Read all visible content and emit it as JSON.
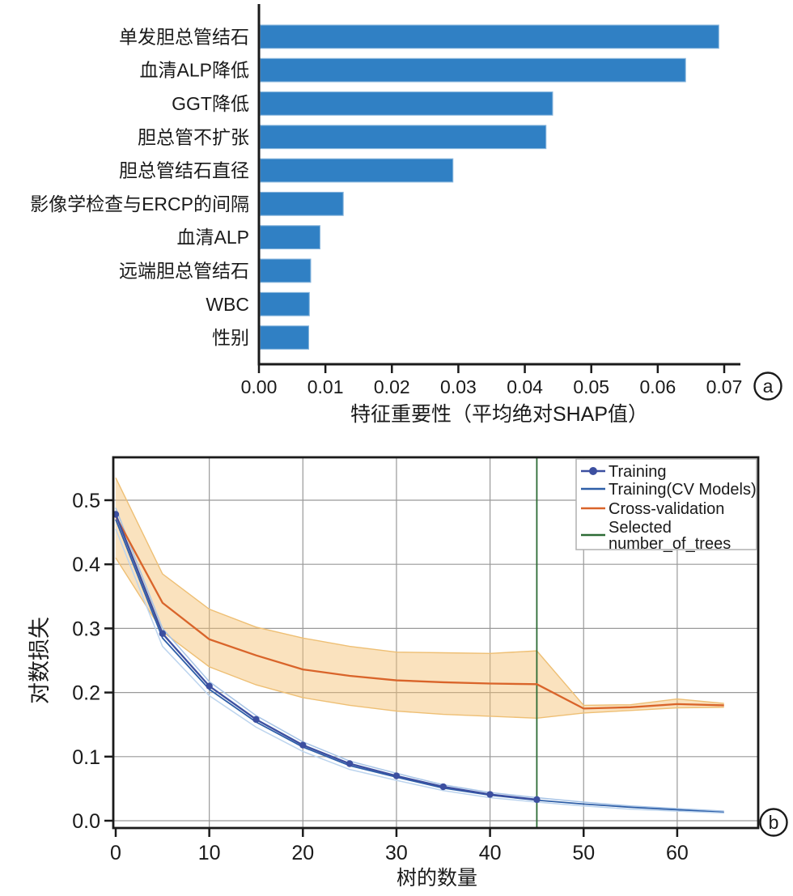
{
  "background": "#ffffff",
  "text_color": "#1a1a1a",
  "panel_labels": [
    "a",
    "b"
  ],
  "chart_data": [
    {
      "type": "bar",
      "orientation": "horizontal",
      "title": "",
      "xlabel": "特征重要性（平均绝对SHAP值）",
      "categories": [
        "单发胆总管结石",
        "血清ALP降低",
        "GGT降低",
        "胆总管不扩张",
        "胆总管结石直径",
        "影像学检查与ERCP的间隔",
        "血清ALP",
        "远端胆总管结石",
        "WBC",
        "性别"
      ],
      "values": [
        0.069,
        0.064,
        0.044,
        0.043,
        0.029,
        0.0125,
        0.009,
        0.0076,
        0.0074,
        0.0073
      ],
      "xtick_labels": [
        "0.00",
        "0.01",
        "0.02",
        "0.03",
        "0.04",
        "0.05",
        "0.06",
        "0.07"
      ],
      "xlim": [
        0,
        0.0725
      ],
      "grid": false,
      "bar_color": "#3080c4",
      "bar_edge_color": "#85b4dc",
      "panel_label": "a"
    },
    {
      "type": "line",
      "title": "",
      "xlabel": "树的数量",
      "ylabel": "对数损失",
      "x": [
        0,
        5,
        10,
        15,
        20,
        25,
        30,
        35,
        40,
        45,
        50,
        55,
        60,
        65
      ],
      "xticks": [
        0,
        10,
        20,
        30,
        40,
        50,
        60
      ],
      "ytick_labels": [
        "0.0",
        "0.1",
        "0.2",
        "0.3",
        "0.4",
        "0.5"
      ],
      "xlim": [
        0,
        68.7
      ],
      "ylim": [
        -0.011,
        0.567
      ],
      "grid": true,
      "grid_color": "#999999",
      "legend_position": "upper right",
      "series": [
        {
          "name": "Training",
          "color": "#3c4fa0",
          "marker": "circle",
          "x": [
            0,
            5,
            10,
            15,
            20,
            25,
            30,
            35,
            40,
            45
          ],
          "values": [
            0.478,
            0.292,
            0.21,
            0.158,
            0.118,
            0.089,
            0.07,
            0.053,
            0.041,
            0.033
          ]
        },
        {
          "name": "Training(CV Models)",
          "color": "#2e5fa8",
          "strands": [
            {
              "color": "#a6c3e6",
              "values": [
                0.488,
                0.3,
                0.217,
                0.164,
                0.123,
                0.093,
                0.074,
                0.056,
                0.044,
                0.036,
                0.029,
                0.023,
                0.019,
                0.015
              ]
            },
            {
              "color": "#2e5fa8",
              "values": [
                0.47,
                0.285,
                0.205,
                0.154,
                0.115,
                0.086,
                0.068,
                0.051,
                0.04,
                0.032,
                0.026,
                0.021,
                0.017,
                0.013
              ]
            },
            {
              "color": "#bcd4ee",
              "values": [
                0.455,
                0.272,
                0.195,
                0.146,
                0.108,
                0.08,
                0.063,
                0.047,
                0.036,
                0.029,
                0.023,
                0.018,
                0.015,
                0.012
              ]
            }
          ]
        },
        {
          "name": "Cross-validation",
          "color": "#d9642a",
          "values": [
            0.475,
            0.34,
            0.283,
            0.258,
            0.236,
            0.226,
            0.219,
            0.216,
            0.214,
            0.213,
            0.175,
            0.177,
            0.182,
            0.18
          ],
          "band": {
            "color": "#f5be6e",
            "opacity": 0.45,
            "edge_color": "#eebf74",
            "upper": [
              0.535,
              0.385,
              0.33,
              0.302,
              0.285,
              0.272,
              0.263,
              0.262,
              0.261,
              0.265,
              0.18,
              0.181,
              0.19,
              0.183
            ],
            "lower": [
              0.41,
              0.295,
              0.24,
              0.212,
              0.192,
              0.18,
              0.171,
              0.166,
              0.163,
              0.16,
              0.168,
              0.172,
              0.176,
              0.177
            ]
          }
        },
        {
          "name": "Selected number_of_trees",
          "type": "vline",
          "x": 45,
          "color": "#2d6b35"
        }
      ],
      "legend": [
        {
          "label_lines": [
            "Training"
          ],
          "color": "#3c4fa0",
          "marker": true
        },
        {
          "label_lines": [
            "Training(CV Models)"
          ],
          "color": "#2e5fa8",
          "marker": false
        },
        {
          "label_lines": [
            "Cross-validation"
          ],
          "color": "#d9642a",
          "marker": false
        },
        {
          "label_lines": [
            "Selected",
            "number_of_trees"
          ],
          "color": "#2d6b35",
          "marker": false
        }
      ],
      "panel_label": "b"
    }
  ]
}
